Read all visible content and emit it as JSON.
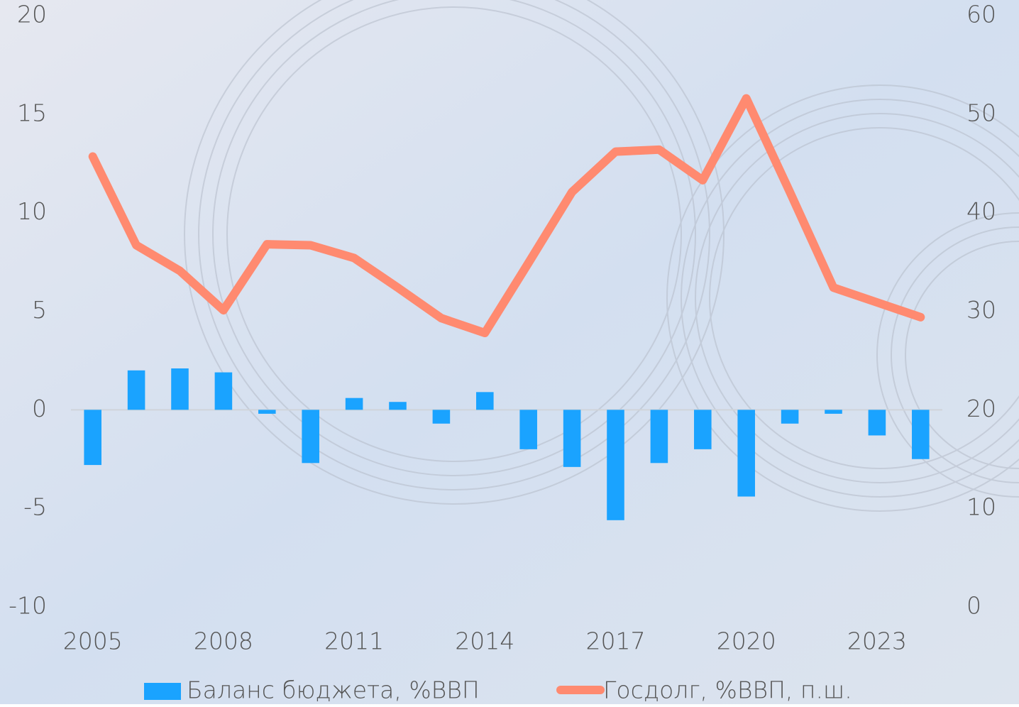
{
  "chart_data": {
    "type": "bar-line",
    "categories": [
      "2005",
      null,
      null,
      "2008",
      null,
      null,
      "2011",
      null,
      null,
      "2014",
      null,
      null,
      "2017",
      null,
      null,
      "2020",
      null,
      null,
      "2023",
      null
    ],
    "series": [
      {
        "name": "Баланс бюджета, %ВВП",
        "type": "bar",
        "color": "#1aa3ff",
        "values": [
          -2.8,
          2.0,
          2.1,
          1.9,
          -0.2,
          -2.7,
          0.6,
          0.4,
          -0.7,
          0.9,
          -2.0,
          -2.9,
          -5.6,
          -2.7,
          -2.0,
          -4.4,
          -0.7,
          -0.2,
          -1.3,
          -2.5
        ]
      },
      {
        "name": "Госдолг, %ВВП, п.ш.",
        "type": "line",
        "axis": "y2",
        "color": "#ff8a70",
        "values": [
          45.7,
          36.7,
          34.1,
          30.1,
          36.8,
          36.7,
          35.4,
          32.4,
          29.3,
          27.8,
          34.9,
          42.1,
          46.2,
          46.4,
          43.3,
          51.6,
          42.1,
          32.4,
          30.9,
          29.4
        ]
      }
    ],
    "ylim": [
      -10,
      20
    ],
    "yticks": [
      -10,
      -5,
      0,
      5,
      10,
      15,
      20
    ],
    "y2lim": [
      0,
      60
    ],
    "y2ticks": [
      0,
      10,
      20,
      30,
      40,
      50,
      60
    ],
    "legend": "bottom"
  }
}
